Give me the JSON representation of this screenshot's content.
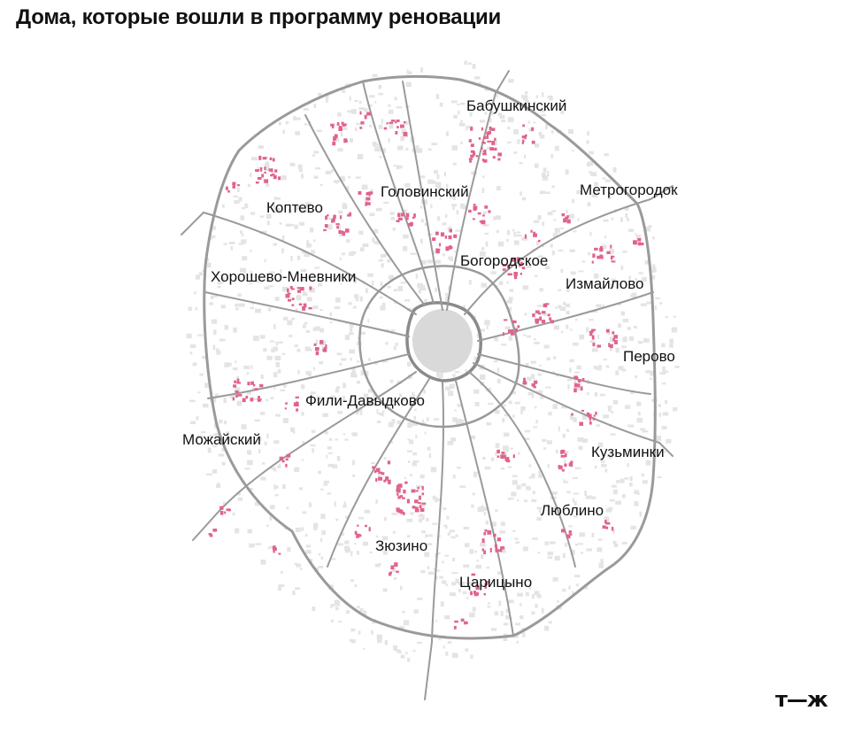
{
  "title": "Дома, которые вошли в программу реновации",
  "logo_text": "т—ж",
  "colors": {
    "highlight": "#e0648a",
    "road": "#9a9a9a",
    "texture": "#e4e4e4"
  },
  "districts": [
    {
      "id": "babushkinsky",
      "name": "Бабушкинский"
    },
    {
      "id": "golovinsky",
      "name": "Головинский"
    },
    {
      "id": "metrogorodok",
      "name": "Метрогородок"
    },
    {
      "id": "koptevo",
      "name": "Коптево"
    },
    {
      "id": "bogorodskoe",
      "name": "Богородское"
    },
    {
      "id": "khoroshevo",
      "name": "Хорошево-Мневники"
    },
    {
      "id": "izmaylovo",
      "name": "Измайлово"
    },
    {
      "id": "perovo",
      "name": "Перово"
    },
    {
      "id": "fili",
      "name": "Фили-Давыдково"
    },
    {
      "id": "mozhaysky",
      "name": "Можайский"
    },
    {
      "id": "kuzminki",
      "name": "Кузьминки"
    },
    {
      "id": "lyublino",
      "name": "Люблино"
    },
    {
      "id": "zyuzino",
      "name": "Зюзино"
    },
    {
      "id": "tsaritsyno",
      "name": "Царицыно"
    }
  ]
}
